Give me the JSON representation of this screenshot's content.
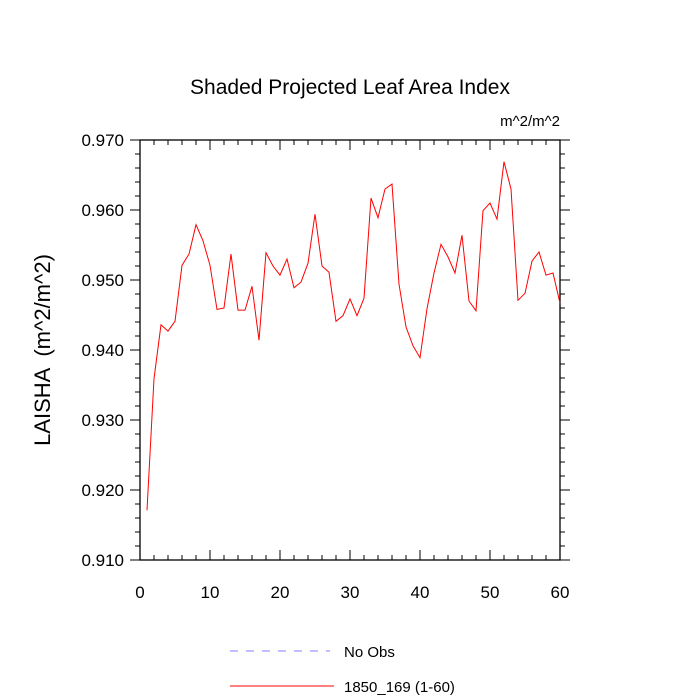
{
  "chart_data": {
    "type": "line",
    "title": "Shaded Projected Leaf Area Index",
    "units": "m^2/m^2",
    "xlabel": "",
    "ylabel": "LAISHA  (m^2/m^2)",
    "xlim": [
      0,
      60
    ],
    "ylim": [
      0.91,
      0.97
    ],
    "x_ticks": [
      0,
      10,
      20,
      30,
      40,
      50,
      60
    ],
    "x_tick_labels": [
      "0",
      "10",
      "20",
      "30",
      "40",
      "50",
      "60"
    ],
    "y_ticks": [
      0.91,
      0.92,
      0.93,
      0.94,
      0.95,
      0.96,
      0.97
    ],
    "y_tick_labels": [
      "0.910",
      "0.920",
      "0.930",
      "0.940",
      "0.950",
      "0.960",
      "0.970"
    ],
    "legend_position": "bottom-center",
    "series": [
      {
        "name": "No Obs",
        "color": "#8080ff",
        "style": "dashed",
        "x": [],
        "values": []
      },
      {
        "name": "1850_169 (1-60)",
        "color": "#ff0000",
        "style": "solid",
        "x": [
          1,
          2,
          3,
          4,
          5,
          6,
          7,
          8,
          9,
          10,
          11,
          12,
          13,
          14,
          15,
          16,
          17,
          18,
          19,
          20,
          21,
          22,
          23,
          24,
          25,
          26,
          27,
          28,
          29,
          30,
          31,
          32,
          33,
          34,
          35,
          36,
          37,
          38,
          39,
          40,
          41,
          42,
          43,
          44,
          45,
          46,
          47,
          48,
          49,
          50,
          51,
          52,
          53,
          54,
          55,
          56,
          57,
          58,
          59,
          60
        ],
        "values": [
          0.9171,
          0.9359,
          0.9436,
          0.9427,
          0.9441,
          0.9521,
          0.9537,
          0.9579,
          0.9556,
          0.9521,
          0.9458,
          0.946,
          0.9537,
          0.9457,
          0.9457,
          0.9491,
          0.9414,
          0.9539,
          0.952,
          0.9507,
          0.953,
          0.9489,
          0.9497,
          0.9524,
          0.9594,
          0.952,
          0.9511,
          0.9441,
          0.9449,
          0.9473,
          0.9449,
          0.9474,
          0.9617,
          0.9589,
          0.963,
          0.9637,
          0.9494,
          0.9433,
          0.9406,
          0.9389,
          0.9459,
          0.951,
          0.9551,
          0.9533,
          0.951,
          0.9564,
          0.947,
          0.9456,
          0.9599,
          0.961,
          0.9587,
          0.9669,
          0.963,
          0.9471,
          0.9481,
          0.9527,
          0.954,
          0.9507,
          0.951,
          0.9467
        ]
      }
    ]
  }
}
